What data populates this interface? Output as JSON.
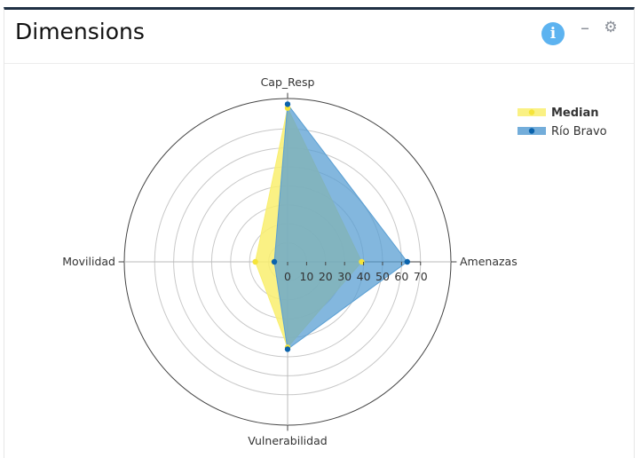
{
  "panel": {
    "title": "Dimensions",
    "info_icon": "info-icon",
    "minimize_icon": "minimize-icon",
    "settings_icon": "gear-icon",
    "info_glyph": "i",
    "minimize_glyph": "–",
    "settings_glyph": "⚙"
  },
  "chart_data": {
    "type": "radar",
    "axes": [
      "Cap_Resp",
      "Amenazas",
      "Vulnerabilidad",
      "Movilidad"
    ],
    "range": [
      0,
      70
    ],
    "tick_values": [
      0,
      10,
      20,
      30,
      40,
      50,
      60,
      70
    ],
    "tick_labels": [
      "0",
      "10",
      "20",
      "30",
      "40",
      "50",
      "60",
      "70"
    ],
    "grid": true,
    "legend_position": "top-right",
    "series": [
      {
        "name": "Median",
        "values": [
          81,
          39,
          45,
          17
        ],
        "color": "#f5e43a",
        "fill": "#f9ef6e",
        "bold": true
      },
      {
        "name": "Río Bravo",
        "values": [
          83,
          63,
          46,
          7
        ],
        "color": "#0b63ac",
        "fill": "#5a9fd3",
        "bold": false
      }
    ]
  }
}
